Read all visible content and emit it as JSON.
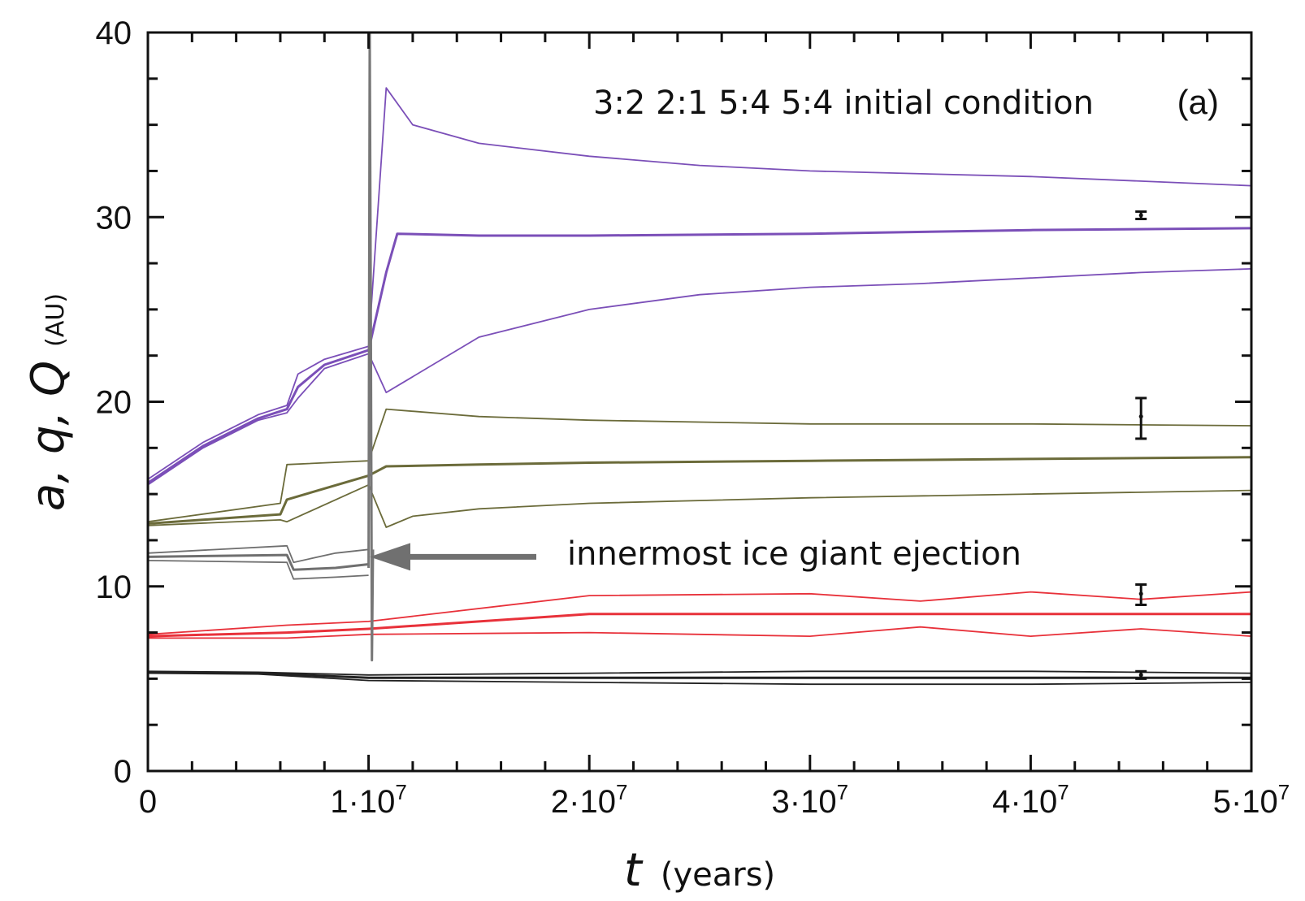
{
  "chart_data": {
    "type": "line",
    "title": "",
    "panel_label": "(a)",
    "annotation_title": "3:2 2:1 5:4 5:4 initial condition",
    "arrow_annotation": "innermost ice giant ejection",
    "xlabel": {
      "symbol": "t",
      "unit": "(years)"
    },
    "ylabel": {
      "symbol": "a, q, Q",
      "unit": "(AU)"
    },
    "xlim": [
      0,
      50000000
    ],
    "ylim": [
      0,
      40
    ],
    "xticks": [
      {
        "value": 0,
        "base": "0",
        "exp": ""
      },
      {
        "value": 10000000,
        "base": "1·10",
        "exp": "7"
      },
      {
        "value": 20000000,
        "base": "2·10",
        "exp": "7"
      },
      {
        "value": 30000000,
        "base": "3·10",
        "exp": "7"
      },
      {
        "value": 40000000,
        "base": "4·10",
        "exp": "7"
      },
      {
        "value": 50000000,
        "base": "5·10",
        "exp": "7"
      }
    ],
    "yticks": [
      {
        "value": 0,
        "label": "0"
      },
      {
        "value": 10,
        "label": "10"
      },
      {
        "value": 20,
        "label": "20"
      },
      {
        "value": 30,
        "label": "30"
      },
      {
        "value": 40,
        "label": "40"
      }
    ],
    "series": [
      {
        "color": "#7b4fb8",
        "role": "Q",
        "x": [
          0,
          2500000,
          5000000,
          6300000,
          6800000,
          8000000,
          10000000,
          10800000,
          12000000,
          15000000,
          20000000,
          25000000,
          30000000,
          40000000,
          50000000
        ],
        "y": [
          15.8,
          17.8,
          19.3,
          19.8,
          21.5,
          22.3,
          23.0,
          37.0,
          35.0,
          34.0,
          33.3,
          32.8,
          32.5,
          32.2,
          31.7
        ]
      },
      {
        "color": "#7b4fb8",
        "role": "a",
        "x": [
          0,
          2500000,
          5000000,
          6300000,
          6800000,
          8000000,
          10000000,
          10800000,
          11300000,
          15000000,
          20000000,
          30000000,
          40000000,
          50000000
        ],
        "y": [
          15.6,
          17.6,
          19.1,
          19.6,
          20.8,
          22.0,
          22.8,
          27.0,
          29.1,
          29.0,
          29.0,
          29.1,
          29.3,
          29.4
        ]
      },
      {
        "color": "#7b4fb8",
        "role": "q",
        "x": [
          0,
          2500000,
          5000000,
          6300000,
          6800000,
          8000000,
          10000000,
          10800000,
          11500000,
          15000000,
          20000000,
          25000000,
          30000000,
          35000000,
          40000000,
          45000000,
          50000000
        ],
        "y": [
          15.5,
          17.5,
          19.0,
          19.4,
          20.2,
          21.8,
          22.6,
          20.5,
          21.0,
          23.5,
          25.0,
          25.8,
          26.2,
          26.4,
          26.7,
          27.0,
          27.2
        ]
      },
      {
        "color": "#6b6b3a",
        "role": "Q",
        "x": [
          0,
          6000000,
          6300000,
          10000000,
          10800000,
          15000000,
          20000000,
          30000000,
          40000000,
          50000000
        ],
        "y": [
          13.5,
          14.5,
          16.6,
          16.8,
          19.6,
          19.2,
          19.0,
          18.8,
          18.8,
          18.7
        ]
      },
      {
        "color": "#6b6b3a",
        "role": "a",
        "x": [
          0,
          6000000,
          6300000,
          10000000,
          10800000,
          15000000,
          20000000,
          30000000,
          40000000,
          50000000
        ],
        "y": [
          13.4,
          13.9,
          14.7,
          16.0,
          16.5,
          16.6,
          16.7,
          16.8,
          16.9,
          17.0
        ]
      },
      {
        "color": "#6b6b3a",
        "role": "q",
        "x": [
          0,
          6000000,
          6300000,
          10000000,
          10800000,
          12000000,
          15000000,
          20000000,
          30000000,
          40000000,
          50000000
        ],
        "y": [
          13.3,
          13.6,
          13.5,
          15.5,
          13.2,
          13.8,
          14.2,
          14.5,
          14.8,
          15.0,
          15.2
        ]
      },
      {
        "color": "#6f6f6f",
        "role": "Q",
        "x": [
          0,
          6300000,
          6600000,
          8500000,
          10000000
        ],
        "y": [
          11.8,
          12.2,
          11.3,
          11.8,
          12.0
        ]
      },
      {
        "color": "#6f6f6f",
        "role": "a",
        "x": [
          0,
          6300000,
          6600000,
          8500000,
          10000000
        ],
        "y": [
          11.6,
          11.7,
          10.9,
          11.0,
          11.2
        ]
      },
      {
        "color": "#6f6f6f",
        "role": "q",
        "x": [
          0,
          6300000,
          6600000,
          8500000,
          10000000
        ],
        "y": [
          11.4,
          11.3,
          10.4,
          10.5,
          10.6
        ]
      },
      {
        "color": "#e8313a",
        "role": "Q",
        "x": [
          0,
          6300000,
          10000000,
          20000000,
          30000000,
          35000000,
          40000000,
          45000000,
          50000000
        ],
        "y": [
          7.4,
          7.9,
          8.1,
          9.5,
          9.6,
          9.2,
          9.7,
          9.3,
          9.7
        ]
      },
      {
        "color": "#e8313a",
        "role": "a",
        "x": [
          0,
          6300000,
          10000000,
          20000000,
          30000000,
          40000000,
          50000000
        ],
        "y": [
          7.3,
          7.5,
          7.7,
          8.5,
          8.5,
          8.5,
          8.5
        ]
      },
      {
        "color": "#e8313a",
        "role": "q",
        "x": [
          0,
          6300000,
          10000000,
          20000000,
          30000000,
          35000000,
          40000000,
          45000000,
          50000000
        ],
        "y": [
          7.2,
          7.2,
          7.4,
          7.5,
          7.3,
          7.8,
          7.3,
          7.7,
          7.3
        ]
      },
      {
        "color": "#222222",
        "role": "Q",
        "x": [
          0,
          5000000,
          10000000,
          20000000,
          30000000,
          40000000,
          50000000
        ],
        "y": [
          5.4,
          5.35,
          5.2,
          5.3,
          5.4,
          5.4,
          5.3
        ]
      },
      {
        "color": "#222222",
        "role": "a",
        "x": [
          0,
          5000000,
          10000000,
          20000000,
          30000000,
          40000000,
          50000000
        ],
        "y": [
          5.35,
          5.3,
          5.05,
          5.05,
          5.05,
          5.05,
          5.05
        ]
      },
      {
        "color": "#222222",
        "role": "q",
        "x": [
          0,
          5000000,
          10000000,
          20000000,
          30000000,
          40000000,
          50000000
        ],
        "y": [
          5.3,
          5.25,
          4.9,
          4.8,
          4.7,
          4.7,
          4.8
        ]
      },
      {
        "color": "#777777",
        "role": "ejection",
        "x": [
          10000000,
          10050000,
          10100000,
          10150000,
          10200000
        ],
        "y": [
          11.0,
          40.0,
          25.0,
          6.0,
          12.0
        ]
      }
    ],
    "error_bars": [
      {
        "x": 45000000,
        "y": 30.1,
        "low": 29.9,
        "high": 30.3
      },
      {
        "x": 45000000,
        "y": 19.2,
        "low": 18.0,
        "high": 20.2
      },
      {
        "x": 45000000,
        "y": 9.6,
        "low": 9.0,
        "high": 10.1
      },
      {
        "x": 45000000,
        "y": 5.2,
        "low": 5.0,
        "high": 5.4
      }
    ],
    "grid": false,
    "legend": "none"
  }
}
